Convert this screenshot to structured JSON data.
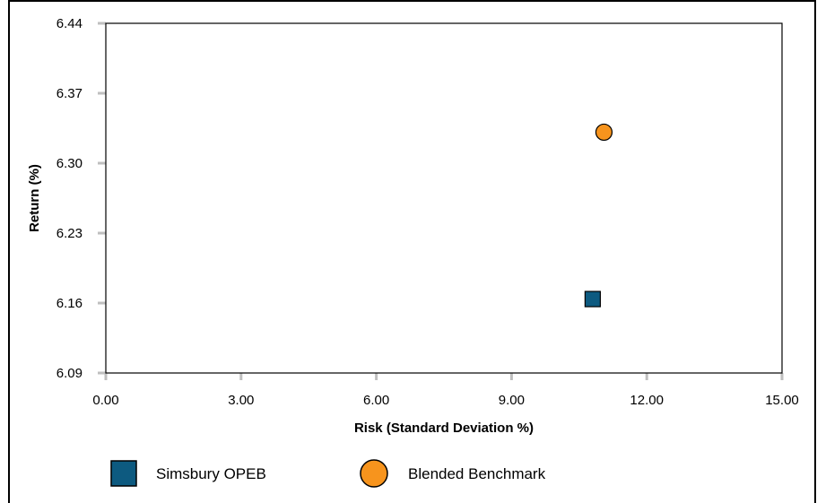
{
  "chart_data": {
    "type": "scatter",
    "xlabel": "Risk (Standard Deviation %)",
    "ylabel": "Return (%)",
    "xlim": [
      0,
      15
    ],
    "ylim": [
      6.09,
      6.44
    ],
    "x_ticks": [
      "0.00",
      "3.00",
      "6.00",
      "9.00",
      "12.00",
      "15.00"
    ],
    "y_ticks": [
      "6.44",
      "6.37",
      "6.30",
      "6.23",
      "6.16",
      "6.09"
    ],
    "x_tick_values": [
      0,
      3,
      6,
      9,
      12,
      15
    ],
    "y_tick_values": [
      6.44,
      6.37,
      6.3,
      6.23,
      6.16,
      6.09
    ],
    "series": [
      {
        "name": "Simsbury OPEB",
        "marker": "square",
        "color": "#0d5a80",
        "x": 10.8,
        "y": 6.164
      },
      {
        "name": "Blended Benchmark",
        "marker": "circle",
        "color": "#f7941d",
        "x": 11.05,
        "y": 6.331
      }
    ],
    "grid": false,
    "legend_position": "bottom-left"
  }
}
